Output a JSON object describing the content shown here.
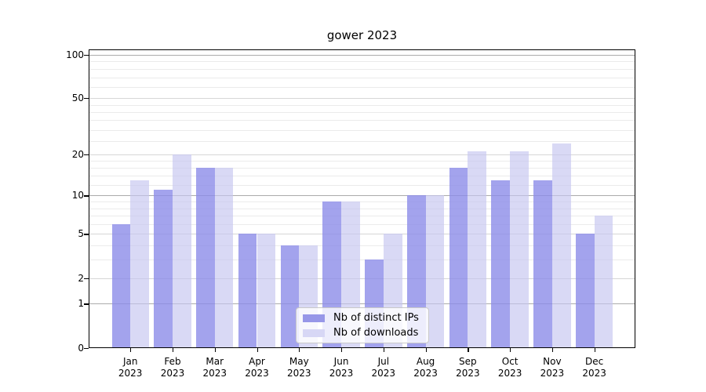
{
  "title": "gower 2023",
  "chart_data": {
    "type": "bar",
    "title": "gower 2023",
    "categories": [
      "Jan",
      "Feb",
      "Mar",
      "Apr",
      "May",
      "Jun",
      "Jul",
      "Aug",
      "Sep",
      "Oct",
      "Nov",
      "Dec"
    ],
    "category_year": "2023",
    "series": [
      {
        "name": "Nb of distinct IPs",
        "color": "rgba(140,140,232,0.8)",
        "legend_color": "#9797e8",
        "values": [
          6,
          11,
          16,
          5,
          4,
          9,
          3,
          10,
          16,
          13,
          13,
          5
        ]
      },
      {
        "name": "Nb of downloads",
        "color": "rgba(196,196,240,0.65)",
        "legend_color": "#d7d7f5",
        "values": [
          13,
          20,
          16,
          5,
          4,
          9,
          5,
          10,
          21,
          21,
          24,
          7
        ]
      }
    ],
    "y_scale": "log10(1+x)",
    "ylim": [
      0,
      100
    ],
    "y_major_ticks": [
      0,
      1,
      2,
      5,
      10,
      20,
      50,
      100
    ],
    "y_decade_gridlines": [
      1,
      10,
      100
    ],
    "y_mid_gridlines": [
      2,
      5,
      20,
      50
    ],
    "y_minor_gridlines": [
      3,
      4,
      6,
      7,
      8,
      9,
      12,
      14,
      16,
      18,
      25,
      30,
      35,
      40,
      45,
      60,
      70,
      80,
      90
    ],
    "grid": "on",
    "legend_position": "bottom-center-inside",
    "colors": {
      "decade_gridline": "#ababab",
      "mid_gridline": "#d6d6d6",
      "minor_gridline": "#ebebeb",
      "axis": "#000000"
    }
  }
}
